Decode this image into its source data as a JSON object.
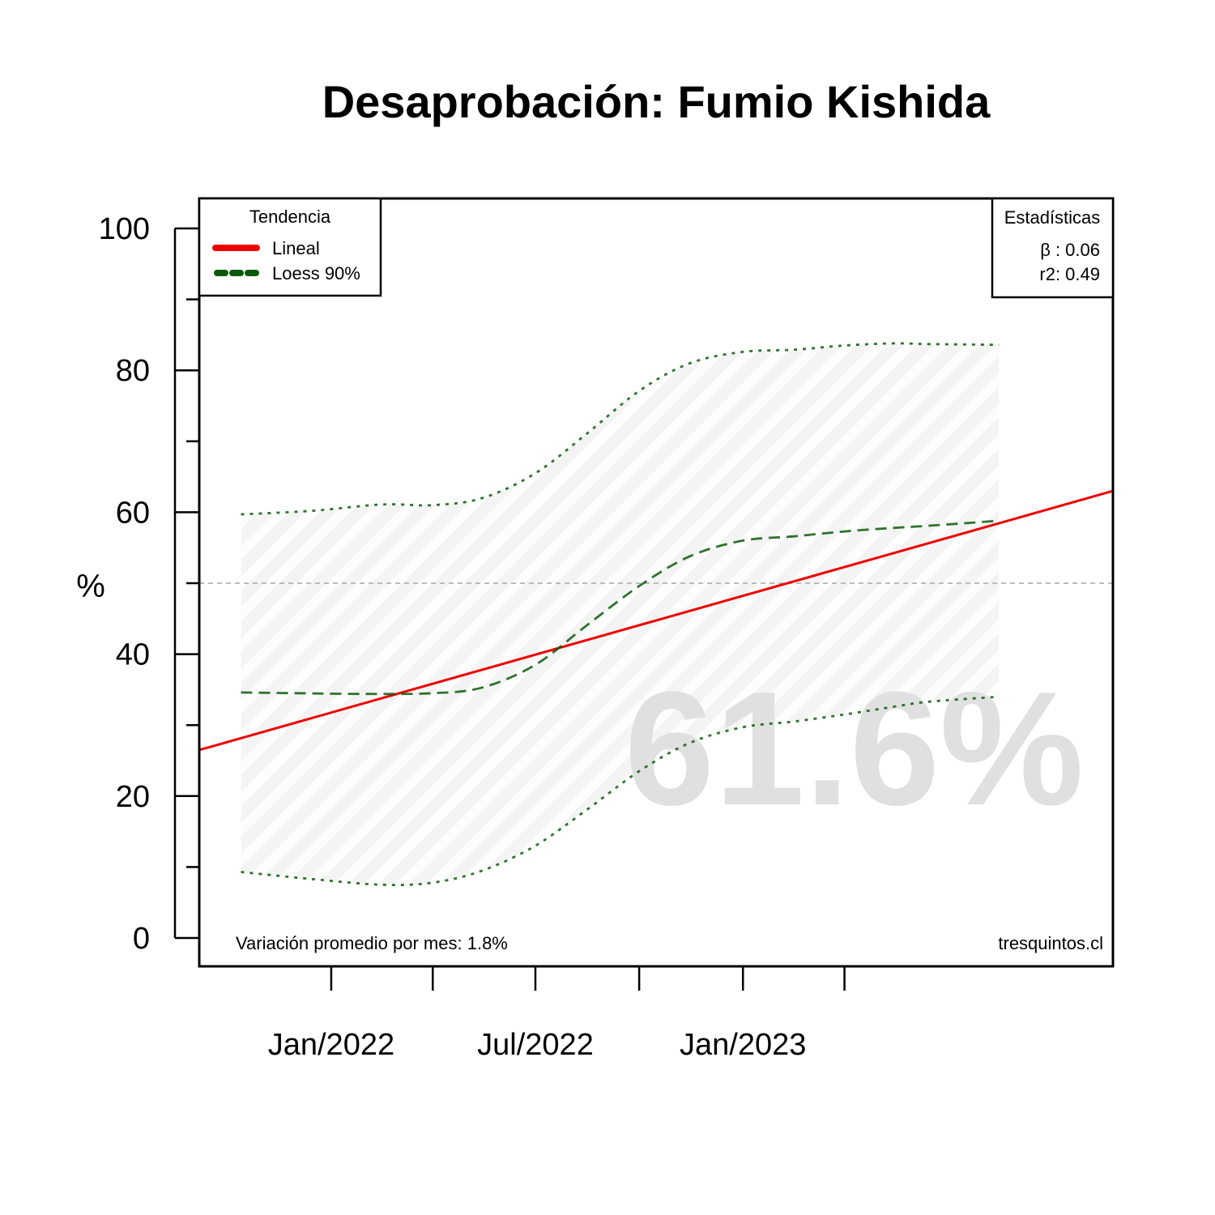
{
  "chart_data": {
    "type": "line",
    "title": "Desaprobación: Fumio Kishida",
    "ylabel": "%",
    "xlabel": "",
    "ylim": [
      0,
      100
    ],
    "y_ticks": [
      0,
      20,
      40,
      60,
      80,
      100
    ],
    "y_minor_ticks": [
      10,
      30,
      50,
      70,
      90
    ],
    "x_range": [
      "2021-09-06",
      "2023-11-25"
    ],
    "x_tick_labels": [
      {
        "date": "2022-01-01",
        "label": "Jan/2022"
      },
      {
        "date": "2022-07-01",
        "label": "Jul/2022"
      },
      {
        "date": "2023-01-01",
        "label": "Jan/2023"
      }
    ],
    "x_minor_ticks": [
      "2022-04-01",
      "2022-10-01",
      "2023-04-01"
    ],
    "reference_line": 50,
    "big_value": "61.6%",
    "legend": {
      "title": "Tendencia",
      "position": "top-left",
      "items": [
        {
          "label": "Lineal",
          "color": "#ee0000",
          "style": "solid"
        },
        {
          "label": "Loess 90%",
          "color": "#0b5a0b",
          "style": "dashed"
        }
      ]
    },
    "stats": {
      "title": "Estadísticas",
      "beta": "β : 0.06",
      "r2": "r2: 0.49"
    },
    "footer_left": "Variación promedio por mes: 1.8%",
    "footer_right": "tresquintos.cl",
    "series": [
      {
        "name": "Lineal",
        "style": "solid",
        "color": "#ee0000",
        "x": [
          "2021-09-06",
          "2023-11-25"
        ],
        "y": [
          26.5,
          63.0
        ]
      },
      {
        "name": "Loess 90%",
        "style": "dashed",
        "color": "#0b5a0b",
        "x": [
          "2021-10-13",
          "2021-12-01",
          "2022-02-01",
          "2022-04-01",
          "2022-05-15",
          "2022-07-01",
          "2022-08-15",
          "2022-10-01",
          "2022-11-15",
          "2023-01-01",
          "2023-02-15",
          "2023-04-01",
          "2023-05-15",
          "2023-06-15",
          "2023-08-16"
        ],
        "y": [
          34.6,
          34.5,
          34.4,
          34.5,
          35.3,
          38.5,
          44.0,
          49.6,
          53.8,
          56.0,
          56.6,
          57.3,
          57.8,
          58.1,
          58.8
        ]
      },
      {
        "name": "upper",
        "style": "dotted",
        "color": "#0b5a0b",
        "x": [
          "2021-10-13",
          "2021-12-15",
          "2022-02-15",
          "2022-04-01",
          "2022-05-15",
          "2022-07-01",
          "2022-08-15",
          "2022-10-01",
          "2022-11-15",
          "2023-01-01",
          "2023-02-15",
          "2023-04-01",
          "2023-05-15",
          "2023-06-15",
          "2023-08-16"
        ],
        "y": [
          59.7,
          60.2,
          61.1,
          61.0,
          62.0,
          65.5,
          71.0,
          77.1,
          81.0,
          82.6,
          82.9,
          83.5,
          83.8,
          83.7,
          83.6
        ]
      },
      {
        "name": "lower",
        "style": "dotted",
        "color": "#0b5a0b",
        "x": [
          "2021-10-13",
          "2021-12-15",
          "2022-02-15",
          "2022-04-01",
          "2022-05-15",
          "2022-07-01",
          "2022-08-15",
          "2022-10-01",
          "2022-11-15",
          "2023-01-01",
          "2023-02-15",
          "2023-04-01",
          "2023-05-15",
          "2023-06-15",
          "2023-08-16"
        ],
        "y": [
          9.3,
          8.3,
          7.5,
          7.8,
          9.5,
          13.0,
          18.0,
          23.5,
          27.5,
          29.7,
          30.5,
          31.5,
          32.6,
          33.3,
          34.0
        ]
      }
    ]
  }
}
